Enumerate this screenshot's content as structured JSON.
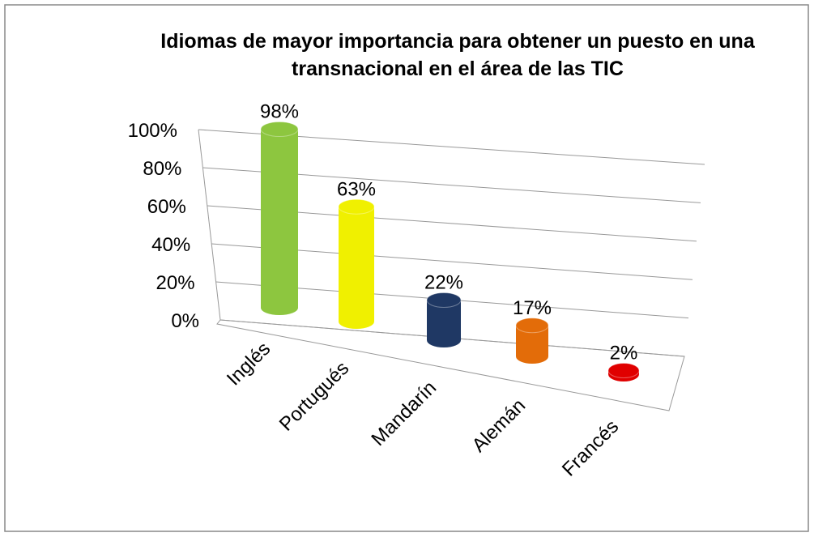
{
  "chart_data": {
    "type": "bar3d",
    "title": "Idiomas de mayor importancia para obtener un puesto en una transnacional en el área de las TIC",
    "categories": [
      "Inglés",
      "Portugués",
      "Mandarín",
      "Alemán",
      "Francés"
    ],
    "values": [
      98,
      63,
      22,
      17,
      2
    ],
    "value_labels": [
      "98%",
      "63%",
      "22%",
      "17%",
      "2%"
    ],
    "colors": [
      "#8dc63f",
      "#f0f000",
      "#1f3864",
      "#e36c09",
      "#e00000"
    ],
    "ylim": [
      0,
      100
    ],
    "yticks": [
      {
        "value": 0,
        "label": "0%"
      },
      {
        "value": 20,
        "label": "20%"
      },
      {
        "value": 40,
        "label": "40%"
      },
      {
        "value": 60,
        "label": "60%"
      },
      {
        "value": 80,
        "label": "80%"
      },
      {
        "value": 100,
        "label": "100%"
      }
    ],
    "grid": true
  }
}
